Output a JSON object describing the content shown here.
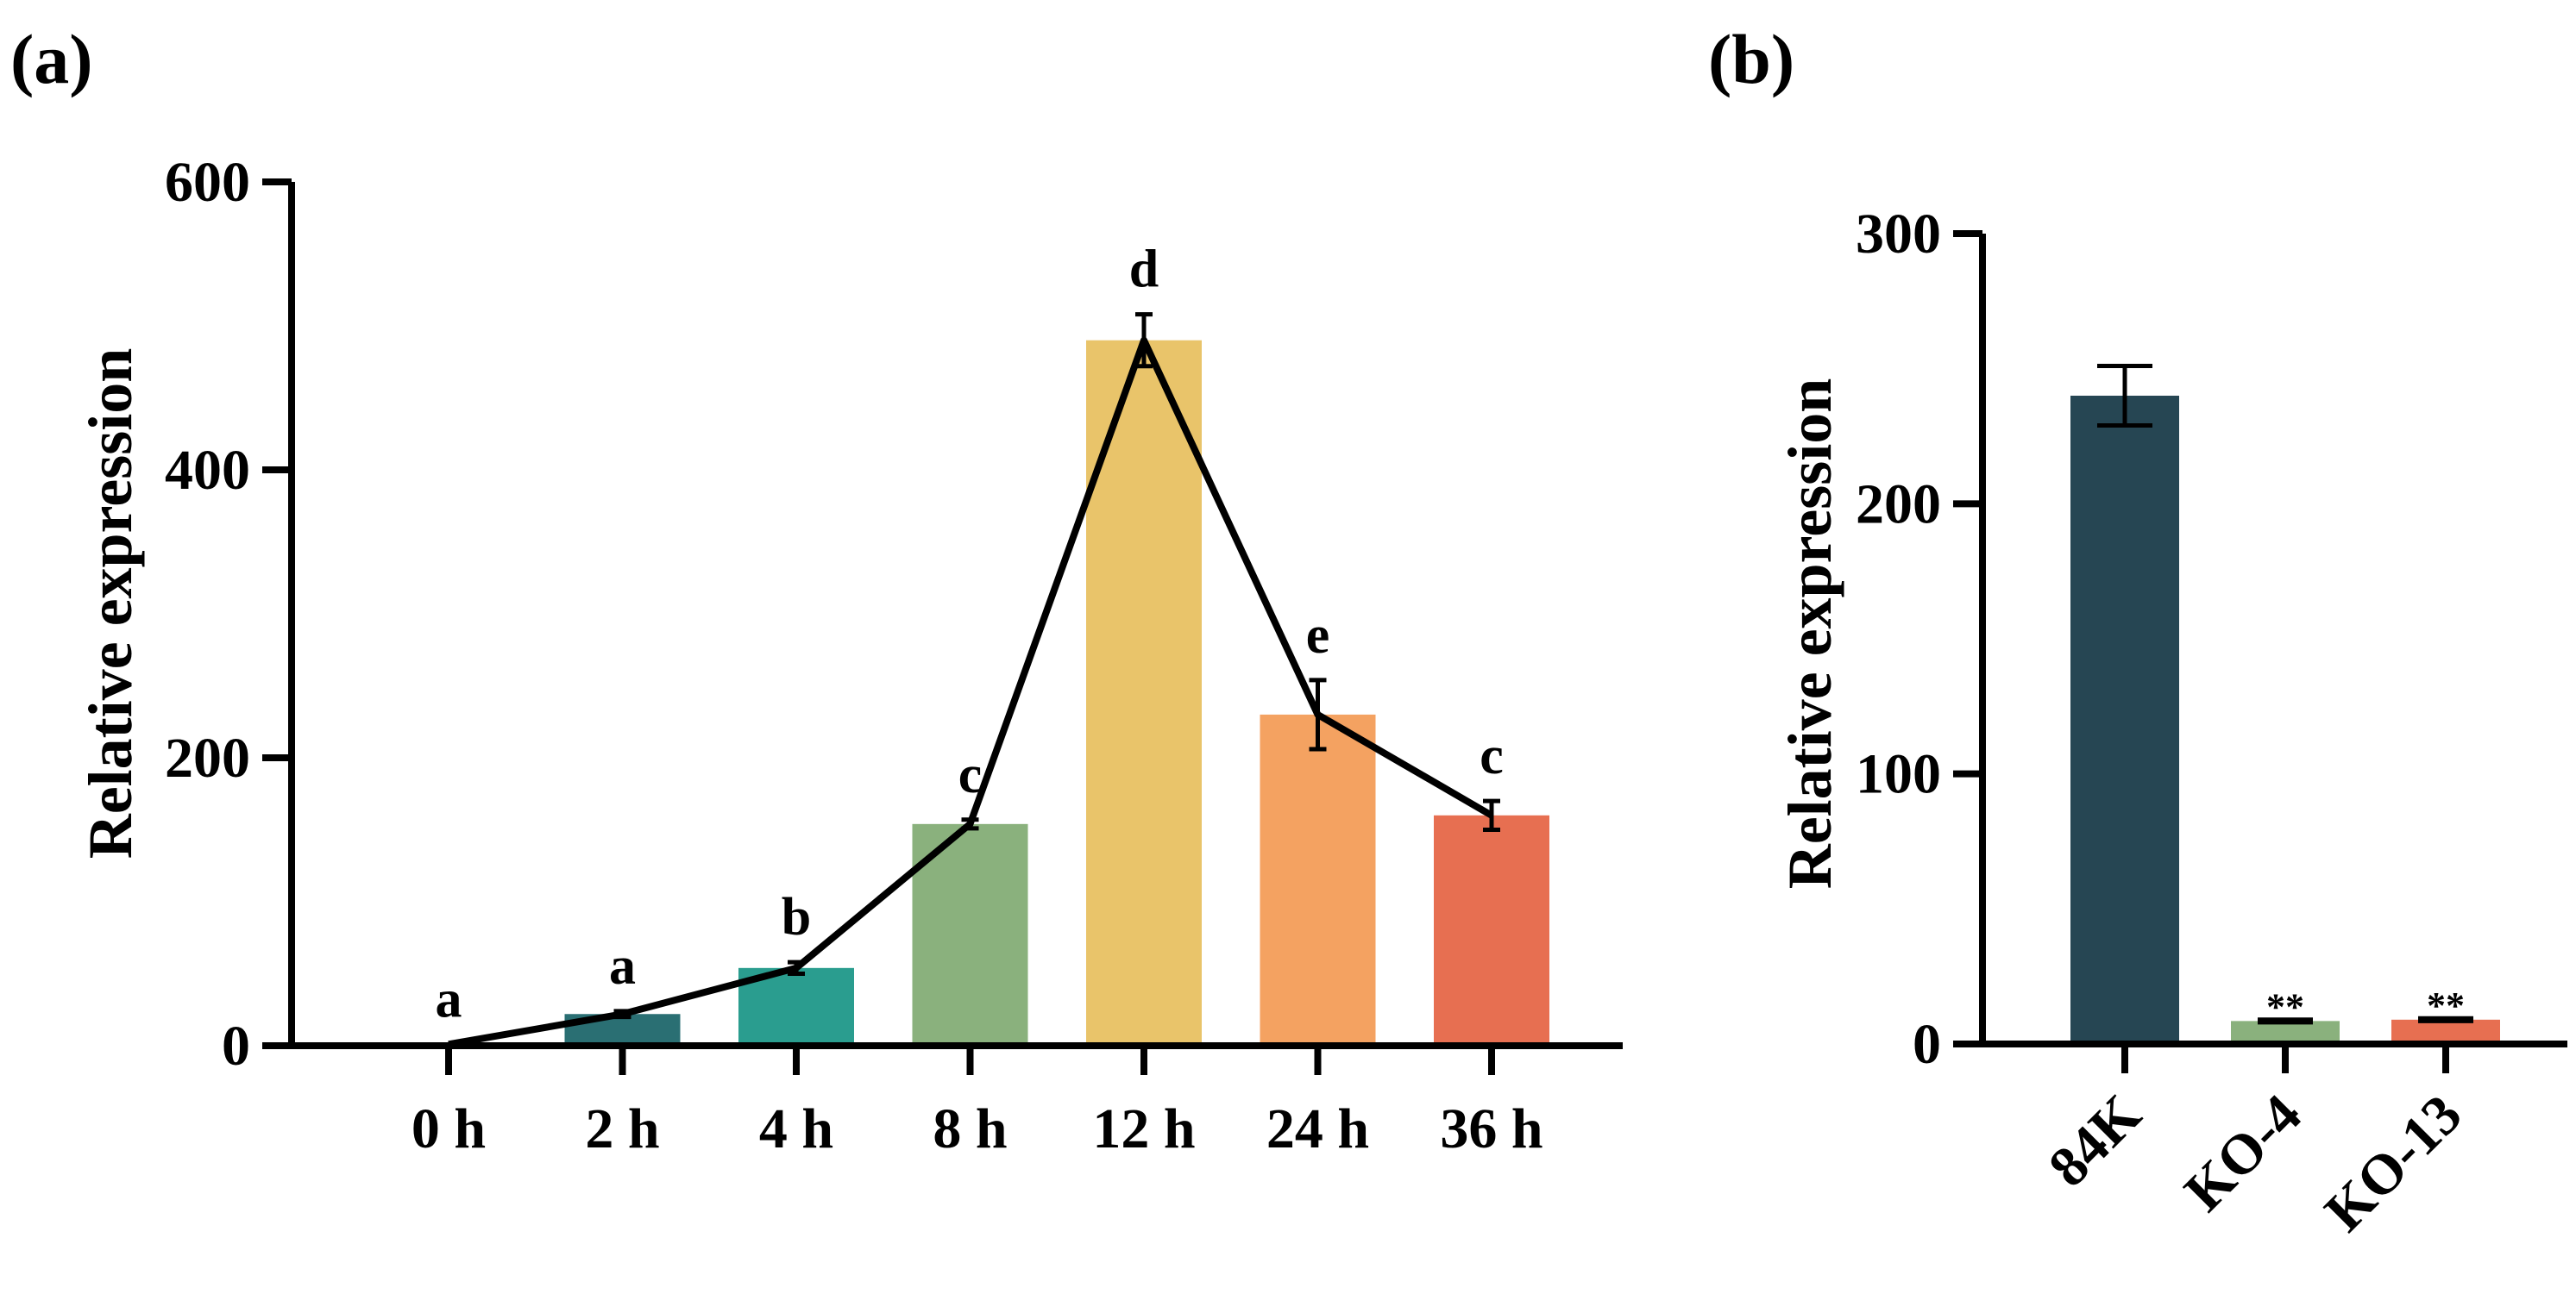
{
  "chart_data": [
    {
      "panel_label": "(a)",
      "type": "bar",
      "overlay": "line",
      "ylabel": "Relative expression",
      "xlabel": "",
      "ylim": [
        0,
        600
      ],
      "yticks": [
        "0",
        "200",
        "400",
        "600"
      ],
      "categories": [
        "0 h",
        "2 h",
        "4 h",
        "8 h",
        "12 h",
        "24 h",
        "36 h"
      ],
      "values": [
        1,
        22,
        54,
        154,
        490,
        230,
        160
      ],
      "errors": [
        0,
        2,
        4,
        3,
        18,
        24,
        10
      ],
      "significance_letters": [
        "a",
        "a",
        "b",
        "c",
        "d",
        "e",
        "c"
      ],
      "colors": [
        "#264653",
        "#2a6f73",
        "#2a9d8f",
        "#8ab17d",
        "#e9c46a",
        "#f4a261",
        "#e76f51"
      ]
    },
    {
      "panel_label": "(b)",
      "type": "bar",
      "ylabel": "Relative expression",
      "xlabel": "",
      "ylim": [
        0,
        300
      ],
      "yticks": [
        "0",
        "100",
        "200",
        "300"
      ],
      "categories": [
        "84K",
        "KO-4",
        "KO-13"
      ],
      "values": [
        240,
        8.5,
        9
      ],
      "errors": [
        11,
        0.5,
        0.5
      ],
      "significance": [
        "",
        "**",
        "**"
      ],
      "colors": [
        "#264653",
        "#8ab17d",
        "#e76f51"
      ]
    }
  ]
}
